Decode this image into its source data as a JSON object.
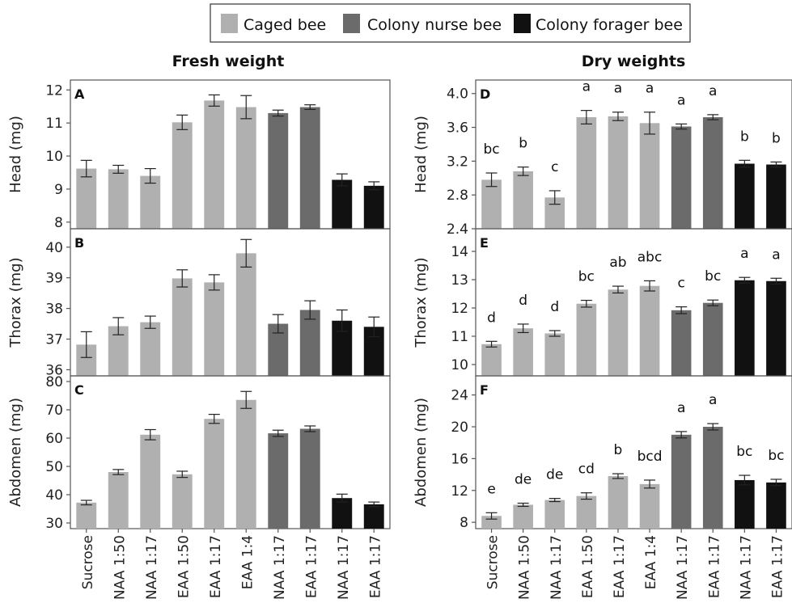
{
  "legend": {
    "items": [
      {
        "label": "Caged bee",
        "color": "#b0b0b0"
      },
      {
        "label": "Colony nurse bee",
        "color": "#6b6b6b"
      },
      {
        "label": "Colony forager bee",
        "color": "#111111"
      }
    ]
  },
  "column_titles": [
    "Fresh weight",
    "Dry weights"
  ],
  "categories": [
    "Sucrose",
    "NAA 1:50",
    "NAA 1:17",
    "EAA 1:50",
    "EAA 1:17",
    "EAA 1:4",
    "NAA 1:17",
    "EAA 1:17",
    "NAA 1:17",
    "EAA 1:17"
  ],
  "group_of_bar": [
    "caged",
    "caged",
    "caged",
    "caged",
    "caged",
    "caged",
    "nurse",
    "nurse",
    "forager",
    "forager"
  ],
  "chart_data": [
    {
      "type": "bar",
      "panel": "A",
      "ylabel": "Head (mg)",
      "ylim": [
        7.8,
        12.3
      ],
      "yticks": [
        8,
        9,
        10,
        11,
        12
      ],
      "values": [
        9.62,
        9.6,
        9.4,
        11.02,
        11.68,
        11.48,
        11.3,
        11.48,
        9.28,
        9.1
      ],
      "errors": [
        0.25,
        0.12,
        0.22,
        0.22,
        0.17,
        0.35,
        0.09,
        0.07,
        0.18,
        0.12
      ],
      "letters": []
    },
    {
      "type": "bar",
      "panel": "B",
      "ylabel": "Thorax (mg)",
      "ylim": [
        35.8,
        40.6
      ],
      "yticks": [
        36,
        37,
        38,
        39,
        40
      ],
      "values": [
        36.82,
        37.42,
        37.55,
        38.98,
        38.85,
        39.8,
        37.5,
        37.95,
        37.6,
        37.4
      ],
      "errors": [
        0.42,
        0.28,
        0.2,
        0.28,
        0.25,
        0.45,
        0.3,
        0.3,
        0.35,
        0.32
      ],
      "letters": []
    },
    {
      "type": "bar",
      "panel": "C",
      "ylabel": "Abdomen (mg)",
      "ylim": [
        28,
        82
      ],
      "yticks": [
        30,
        40,
        50,
        60,
        70,
        80
      ],
      "values": [
        37.2,
        48.0,
        61.2,
        47.2,
        66.8,
        73.5,
        61.7,
        63.3,
        38.8,
        36.6
      ],
      "errors": [
        0.8,
        0.9,
        1.8,
        1.1,
        1.6,
        3.0,
        1.1,
        1.0,
        1.4,
        0.8
      ],
      "letters": []
    },
    {
      "type": "bar",
      "panel": "D",
      "ylabel": "Head (mg)",
      "ylim": [
        2.4,
        4.16
      ],
      "yticks": [
        2.4,
        2.8,
        3.2,
        3.6,
        4.0
      ],
      "ytick_labels": [
        "2.4",
        "2.8",
        "3.2",
        "3.6",
        "4.0"
      ],
      "values": [
        2.98,
        3.08,
        2.77,
        3.72,
        3.73,
        3.65,
        3.61,
        3.72,
        3.17,
        3.16
      ],
      "errors": [
        0.08,
        0.05,
        0.08,
        0.08,
        0.05,
        0.13,
        0.03,
        0.03,
        0.04,
        0.03
      ],
      "letters": [
        "bc",
        "b",
        "c",
        "a",
        "a",
        "a",
        "a",
        "a",
        "b",
        "b"
      ]
    },
    {
      "type": "bar",
      "panel": "E",
      "ylabel": "Thorax (mg)",
      "ylim": [
        9.6,
        14.8
      ],
      "yticks": [
        10,
        11,
        12,
        13,
        14
      ],
      "values": [
        10.72,
        11.28,
        11.1,
        12.15,
        12.65,
        12.78,
        11.92,
        12.18,
        12.98,
        12.95
      ],
      "errors": [
        0.1,
        0.15,
        0.1,
        0.12,
        0.12,
        0.18,
        0.12,
        0.1,
        0.1,
        0.1
      ],
      "letters": [
        "d",
        "d",
        "d",
        "bc",
        "ab",
        "abc",
        "c",
        "bc",
        "a",
        "a"
      ]
    },
    {
      "type": "bar",
      "panel": "F",
      "ylabel": "Abdomen (mg)",
      "ylim": [
        7.2,
        26.4
      ],
      "yticks": [
        8,
        12,
        16,
        20,
        24
      ],
      "values": [
        8.8,
        10.2,
        10.8,
        11.3,
        13.8,
        12.8,
        19.0,
        20.0,
        13.3,
        13.0
      ],
      "errors": [
        0.4,
        0.2,
        0.2,
        0.4,
        0.3,
        0.5,
        0.4,
        0.4,
        0.6,
        0.4
      ],
      "letters": [
        "e",
        "de",
        "de",
        "cd",
        "b",
        "bcd",
        "a",
        "a",
        "bc",
        "bc"
      ]
    }
  ]
}
